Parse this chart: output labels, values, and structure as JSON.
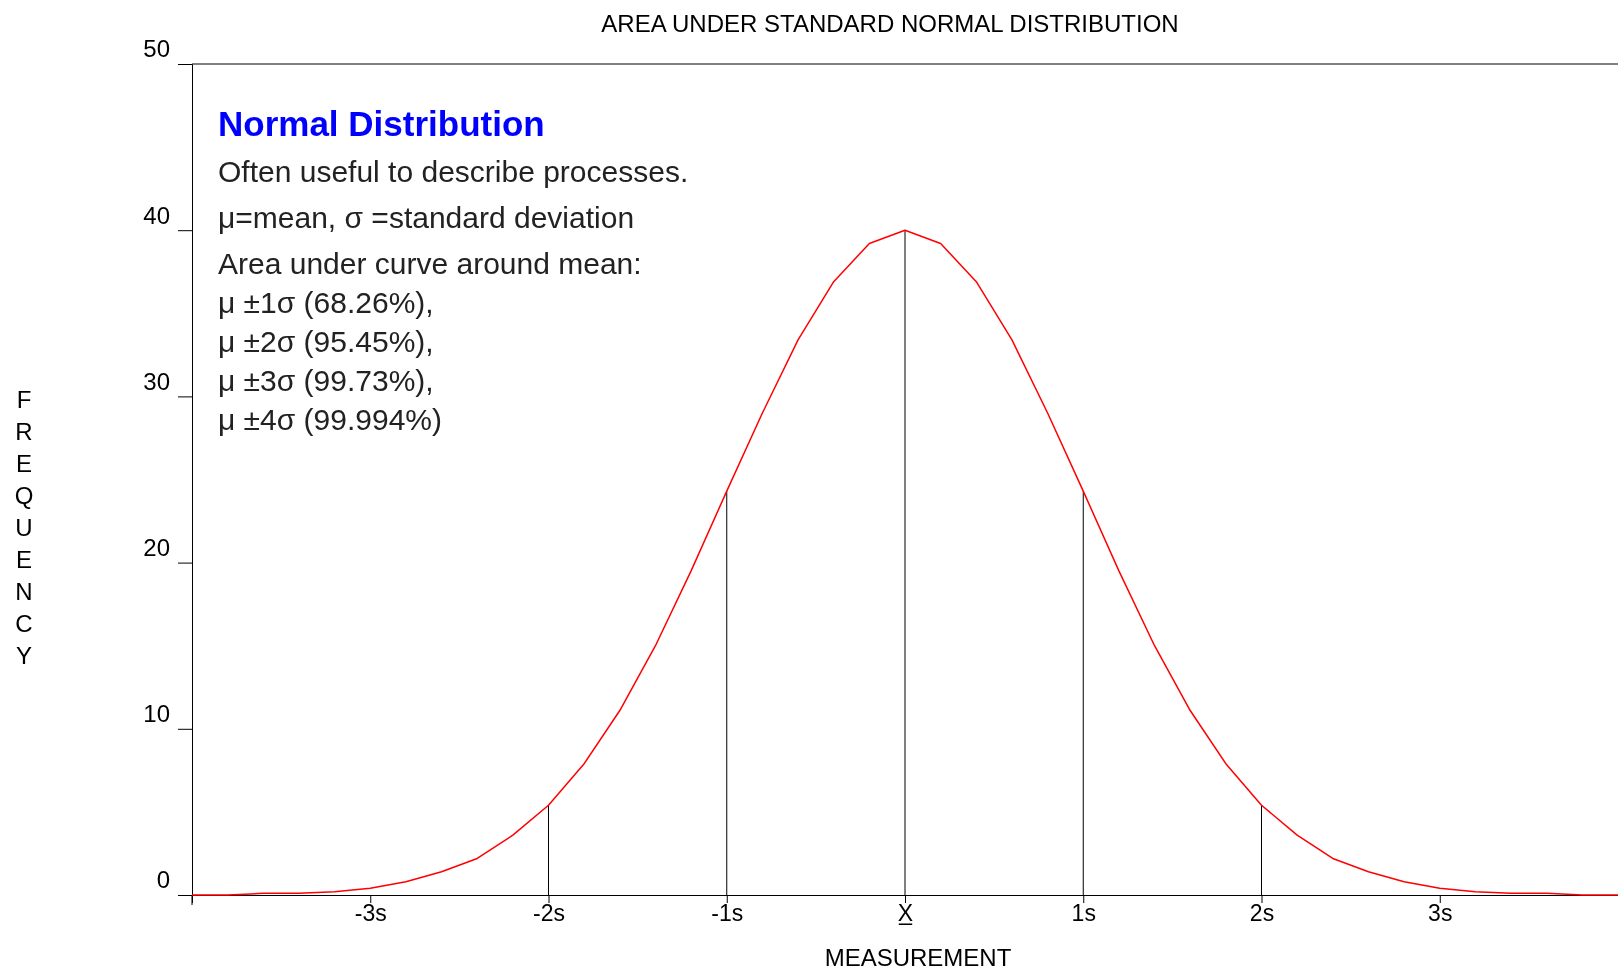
{
  "chart_data": {
    "type": "line",
    "title": "AREA UNDER STANDARD NORMAL DISTRIBUTION",
    "xlabel": "MEASUREMENT",
    "ylabel": "FREQUENCY",
    "annotations": [
      "Normal Distribution",
      "Often useful to describe processes.",
      "μ=mean, σ =standard deviation",
      "Area under curve around mean:",
      "μ ±1σ (68.26%),",
      "μ ±2σ (95.45%),",
      "μ ±3σ (99.73%),",
      "μ ±4σ (99.994%)"
    ],
    "xlim": [
      -4,
      4
    ],
    "ylim": [
      0,
      50
    ],
    "xticks": [
      {
        "value": -3,
        "label": "-3s"
      },
      {
        "value": -2,
        "label": "-2s"
      },
      {
        "value": -1,
        "label": "-1s"
      },
      {
        "value": 0,
        "label": "X̲"
      },
      {
        "value": 1,
        "label": "1s"
      },
      {
        "value": 2,
        "label": "2s"
      },
      {
        "value": 3,
        "label": "3s"
      }
    ],
    "yticks": [
      0,
      10,
      20,
      30,
      40,
      50
    ],
    "grid": false,
    "marker": "none",
    "line_style": "solid",
    "ref_lines": [
      {
        "axis": "x",
        "value": -2,
        "color": "#000000"
      },
      {
        "axis": "x",
        "value": -1,
        "color": "#000000"
      },
      {
        "axis": "x",
        "value": 0,
        "color": "#000000"
      },
      {
        "axis": "x",
        "value": 1,
        "color": "#000000"
      },
      {
        "axis": "x",
        "value": 2,
        "color": "#000000"
      }
    ],
    "series": [
      {
        "color": "#ff0000",
        "x": [
          -4,
          -3.8,
          -3.6,
          -3.4,
          -3.2,
          -3,
          -2.8,
          -2.6,
          -2.4,
          -2.2,
          -2,
          -1.8,
          -1.6,
          -1.4,
          -1.2,
          -1,
          -0.8,
          -0.6,
          -0.4,
          -0.2,
          0,
          0.2,
          0.4,
          0.6,
          0.8,
          1,
          1.2,
          1.4,
          1.6,
          1.8,
          2,
          2.2,
          2.4,
          2.6,
          2.8,
          3,
          3.2,
          3.4,
          3.6,
          3.8,
          4
        ],
        "values": [
          0,
          0,
          0.1,
          0.1,
          0.2,
          0.4,
          0.8,
          1.4,
          2.2,
          3.6,
          5.4,
          7.9,
          11.1,
          15,
          19.5,
          24.3,
          29,
          33.4,
          36.9,
          39.2,
          40,
          39.2,
          36.9,
          33.4,
          29,
          24.3,
          19.5,
          15,
          11.1,
          7.9,
          5.4,
          3.6,
          2.2,
          1.4,
          0.8,
          0.4,
          0.2,
          0.1,
          0.1,
          0,
          0
        ]
      }
    ]
  }
}
